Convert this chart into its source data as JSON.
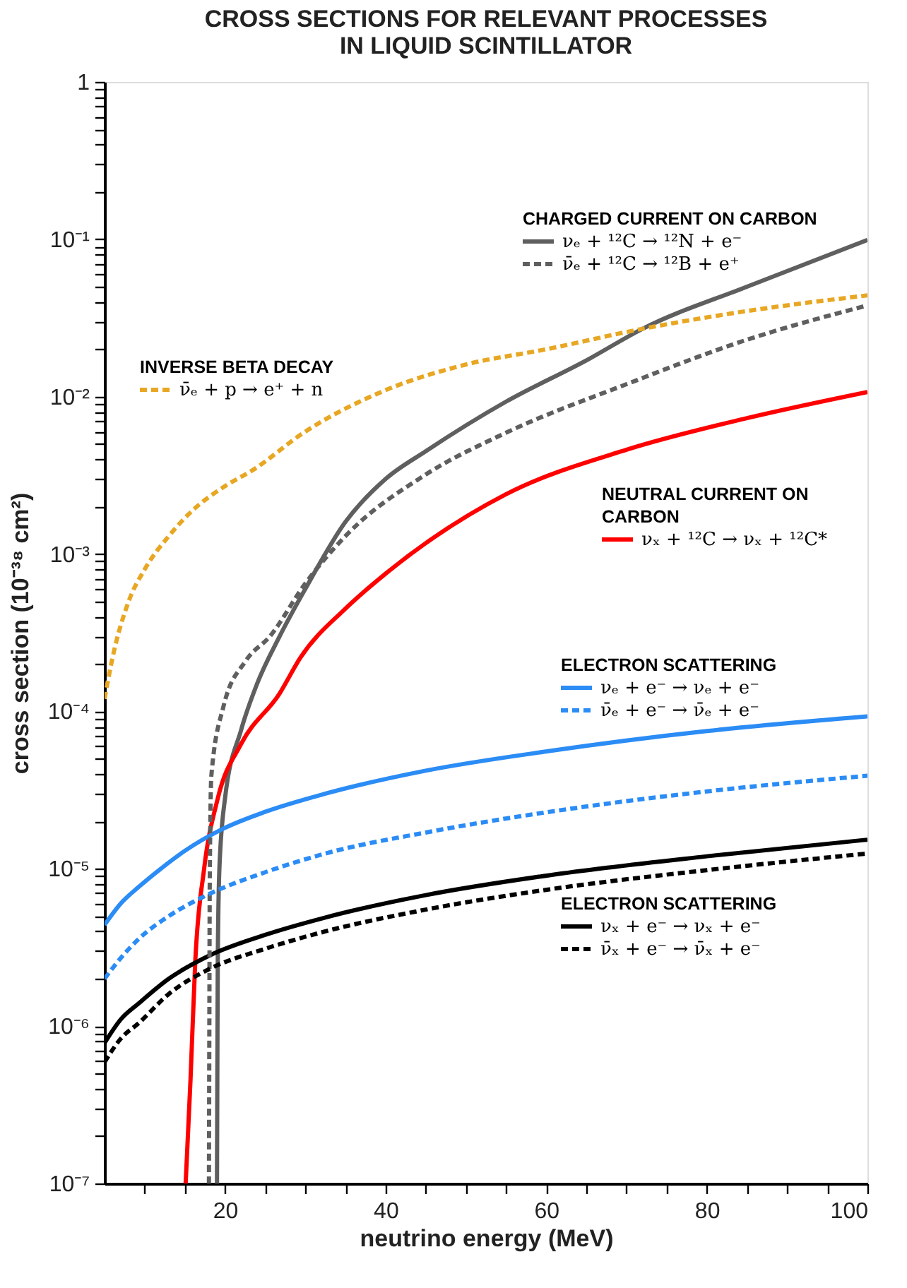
{
  "chart_data": {
    "type": "line",
    "title": "CROSS SECTIONS FOR RELEVANT PROCESSES IN LIQUID SCINTILLATOR",
    "xlabel": "neutrino energy (MeV)",
    "ylabel": "cross section (10⁻³⁸ cm²)",
    "log": "y",
    "legend": "right",
    "xlim": [
      5,
      100
    ],
    "ylim": [
      1e-07,
      1
    ],
    "xticks": [
      {
        "value": 10,
        "label": null
      },
      {
        "value": 15,
        "label": null
      },
      20,
      {
        "value": 25,
        "label": null
      },
      {
        "value": 30,
        "label": null
      },
      {
        "value": 35,
        "label": null
      },
      40,
      {
        "value": 45,
        "label": null
      },
      {
        "value": 50,
        "label": null
      },
      {
        "value": 55,
        "label": null
      },
      60,
      {
        "value": 65,
        "label": null
      },
      {
        "value": 70,
        "label": null
      },
      {
        "value": 75,
        "label": null
      },
      80,
      {
        "value": 85,
        "label": null
      },
      {
        "value": 90,
        "label": null
      },
      {
        "value": 95,
        "label": null
      },
      100
    ],
    "yticks": [
      {
        "value": 1e-07,
        "label": "10⁻⁷"
      },
      {
        "value": 2e-07,
        "label": null
      },
      {
        "value": 3e-07,
        "label": null
      },
      {
        "value": 4e-07,
        "label": null
      },
      {
        "value": 5e-07,
        "label": null
      },
      {
        "value": 6e-07,
        "label": null
      },
      {
        "value": 7e-07,
        "label": null
      },
      {
        "value": 8e-07,
        "label": null
      },
      {
        "value": 9e-07,
        "label": null
      },
      {
        "value": 1e-06,
        "label": "10⁻⁶"
      },
      {
        "value": 2e-06,
        "label": null
      },
      {
        "value": 3e-06,
        "label": null
      },
      {
        "value": 4e-06,
        "label": null
      },
      {
        "value": 5e-06,
        "label": null
      },
      {
        "value": 6e-06,
        "label": null
      },
      {
        "value": 7e-06,
        "label": null
      },
      {
        "value": 8e-06,
        "label": null
      },
      {
        "value": 9e-06,
        "label": null
      },
      {
        "value": 1e-05,
        "label": "10⁻⁵"
      },
      {
        "value": 2e-05,
        "label": null
      },
      {
        "value": 3e-05,
        "label": null
      },
      {
        "value": 4e-05,
        "label": null
      },
      {
        "value": 5e-05,
        "label": null
      },
      {
        "value": 6e-05,
        "label": null
      },
      {
        "value": 7e-05,
        "label": null
      },
      {
        "value": 8e-05,
        "label": null
      },
      {
        "value": 9e-05,
        "label": null
      },
      {
        "value": 0.0001,
        "label": "10⁻⁴"
      },
      {
        "value": 0.0002,
        "label": null
      },
      {
        "value": 0.0003,
        "label": null
      },
      {
        "value": 0.0004,
        "label": null
      },
      {
        "value": 0.0005,
        "label": null
      },
      {
        "value": 0.0006,
        "label": null
      },
      {
        "value": 0.0007,
        "label": null
      },
      {
        "value": 0.0008,
        "label": null
      },
      {
        "value": 0.0009,
        "label": null
      },
      {
        "value": 0.001,
        "label": "10⁻³"
      },
      {
        "value": 0.002,
        "label": null
      },
      {
        "value": 0.003,
        "label": null
      },
      {
        "value": 0.004,
        "label": null
      },
      {
        "value": 0.005,
        "label": null
      },
      {
        "value": 0.006,
        "label": null
      },
      {
        "value": 0.007,
        "label": null
      },
      {
        "value": 0.008,
        "label": null
      },
      {
        "value": 0.009,
        "label": null
      },
      {
        "value": 0.01,
        "label": "10⁻²"
      },
      {
        "value": 0.02,
        "label": null
      },
      {
        "value": 0.03,
        "label": null
      },
      {
        "value": 0.04,
        "label": null
      },
      {
        "value": 0.05,
        "label": null
      },
      {
        "value": 0.06,
        "label": null
      },
      {
        "value": 0.07,
        "label": null
      },
      {
        "value": 0.08,
        "label": null
      },
      {
        "value": 0.09,
        "label": null
      },
      {
        "value": 0.1,
        "label": "10⁻¹"
      },
      {
        "value": 0.2,
        "label": null
      },
      {
        "value": 0.3,
        "label": null
      },
      {
        "value": 0.4,
        "label": null
      },
      {
        "value": 0.5,
        "label": null
      },
      {
        "value": 0.6,
        "label": null
      },
      {
        "value": 0.7,
        "label": null
      },
      {
        "value": 0.8,
        "label": null
      },
      {
        "value": 0.9,
        "label": null
      },
      1
    ],
    "annotations": [
      "CHARGED CURRENT ON CARBON",
      "INVERSE BETA DECAY",
      "NEUTRAL CURRENT ON CARBON",
      "ELECTRON SCATTERING",
      "ELECTRON SCATTERING"
    ],
    "series": [
      {
        "name": "νₑ + ¹²C → ¹²N + e⁻",
        "color": "#5f5f5f",
        "line_style": "solid",
        "x": [
          19.0,
          19.05,
          19.1,
          19.3,
          20,
          22,
          24,
          26.8,
          30,
          35,
          40,
          45,
          55,
          65,
          72,
          85,
          100
        ],
        "values": [
          1e-07,
          6e-07,
          2.6e-06,
          1e-05,
          2.8e-05,
          7.6e-05,
          0.00015,
          0.0003,
          0.0006,
          0.0016,
          0.003,
          0.0045,
          0.0093,
          0.017,
          0.027,
          0.05,
          0.099
        ]
      },
      {
        "name": "ν̄ₑ + ¹²C → ¹²B + e⁺",
        "color": "#5f5f5f",
        "line_style": "dashed",
        "x": [
          18.0,
          18.05,
          18.1,
          18.3,
          19.8,
          22.6,
          25.6,
          30,
          35,
          45,
          55,
          70,
          85,
          100
        ],
        "values": [
          1e-07,
          1e-06,
          8e-06,
          3.9e-05,
          0.000107,
          0.00021,
          0.0003,
          0.00065,
          0.0013,
          0.0032,
          0.0059,
          0.012,
          0.023,
          0.038
        ]
      },
      {
        "name": "ν̄ₑ + p → e⁺ + n",
        "color": "#e8a723",
        "line_style": "dashed",
        "x": [
          5,
          6,
          8,
          10,
          13,
          16,
          20,
          23.4,
          30,
          40,
          50,
          60,
          72,
          85,
          100
        ],
        "values": [
          0.00012,
          0.00022,
          0.0005,
          0.0008,
          0.0013,
          0.0019,
          0.0027,
          0.0034,
          0.006,
          0.011,
          0.016,
          0.02,
          0.027,
          0.035,
          0.044
        ]
      },
      {
        "name": "νₓ + ¹²C → νₓ + ¹²C*",
        "color": "#ff0000",
        "line_style": "solid",
        "x": [
          15.1,
          15.7,
          16.3,
          17.4,
          19.1,
          22,
          26.8,
          29.4,
          35,
          40,
          55,
          70,
          85,
          100
        ],
        "values": [
          1e-07,
          4.5e-07,
          2.6e-06,
          1e-05,
          2.8e-05,
          6.2e-05,
          0.00013,
          0.00022,
          0.00045,
          0.00075,
          0.0024,
          0.0046,
          0.0073,
          0.0107
        ]
      },
      {
        "name": "νₑ + e⁻ → νₑ + e⁻",
        "color": "#2b8cf5",
        "line_style": "solid",
        "x": [
          5,
          7,
          9.3,
          12,
          15,
          19.8,
          25,
          32.5,
          45,
          60.4,
          80,
          100
        ],
        "values": [
          4.4e-06,
          6e-06,
          7.7e-06,
          1e-05,
          1.3e-05,
          1.8e-05,
          2.3e-05,
          3e-05,
          4.2e-05,
          5.6e-05,
          7.5e-05,
          9.3e-05
        ]
      },
      {
        "name": "ν̄ₑ + e⁻ → ν̄ₑ + e⁻",
        "color": "#2b8cf5",
        "line_style": "dashed",
        "x": [
          5,
          7,
          9.3,
          13,
          18,
          25,
          32.5,
          45,
          60.4,
          80,
          100
        ],
        "values": [
          2e-06,
          2.7e-06,
          3.6e-06,
          5e-06,
          6.9e-06,
          9.5e-06,
          1.25e-05,
          1.7e-05,
          2.3e-05,
          3.1e-05,
          3.9e-05
        ]
      },
      {
        "name": "νₓ + e⁻ → νₓ + e⁻",
        "color": "#000000",
        "line_style": "solid",
        "x": [
          5,
          7,
          9.3,
          13,
          18,
          25,
          32.5,
          45,
          60.4,
          80,
          100
        ],
        "values": [
          7.8e-07,
          1.1e-06,
          1.4e-06,
          2e-06,
          2.8e-06,
          3.8e-06,
          4.9e-06,
          6.8e-06,
          9.1e-06,
          1.2e-05,
          1.53e-05
        ]
      },
      {
        "name": "ν̄ₓ + e⁻ → ν̄ₓ + e⁻",
        "color": "#000000",
        "line_style": "dashed",
        "x": [
          5,
          7,
          9.3,
          13,
          18,
          25,
          32.5,
          45,
          60.4,
          80,
          100
        ],
        "values": [
          5.9e-07,
          8.3e-07,
          1.05e-06,
          1.6e-06,
          2.3e-06,
          3.1e-06,
          4e-06,
          5.5e-06,
          7.4e-06,
          9.8e-06,
          1.25e-05
        ]
      }
    ]
  }
}
